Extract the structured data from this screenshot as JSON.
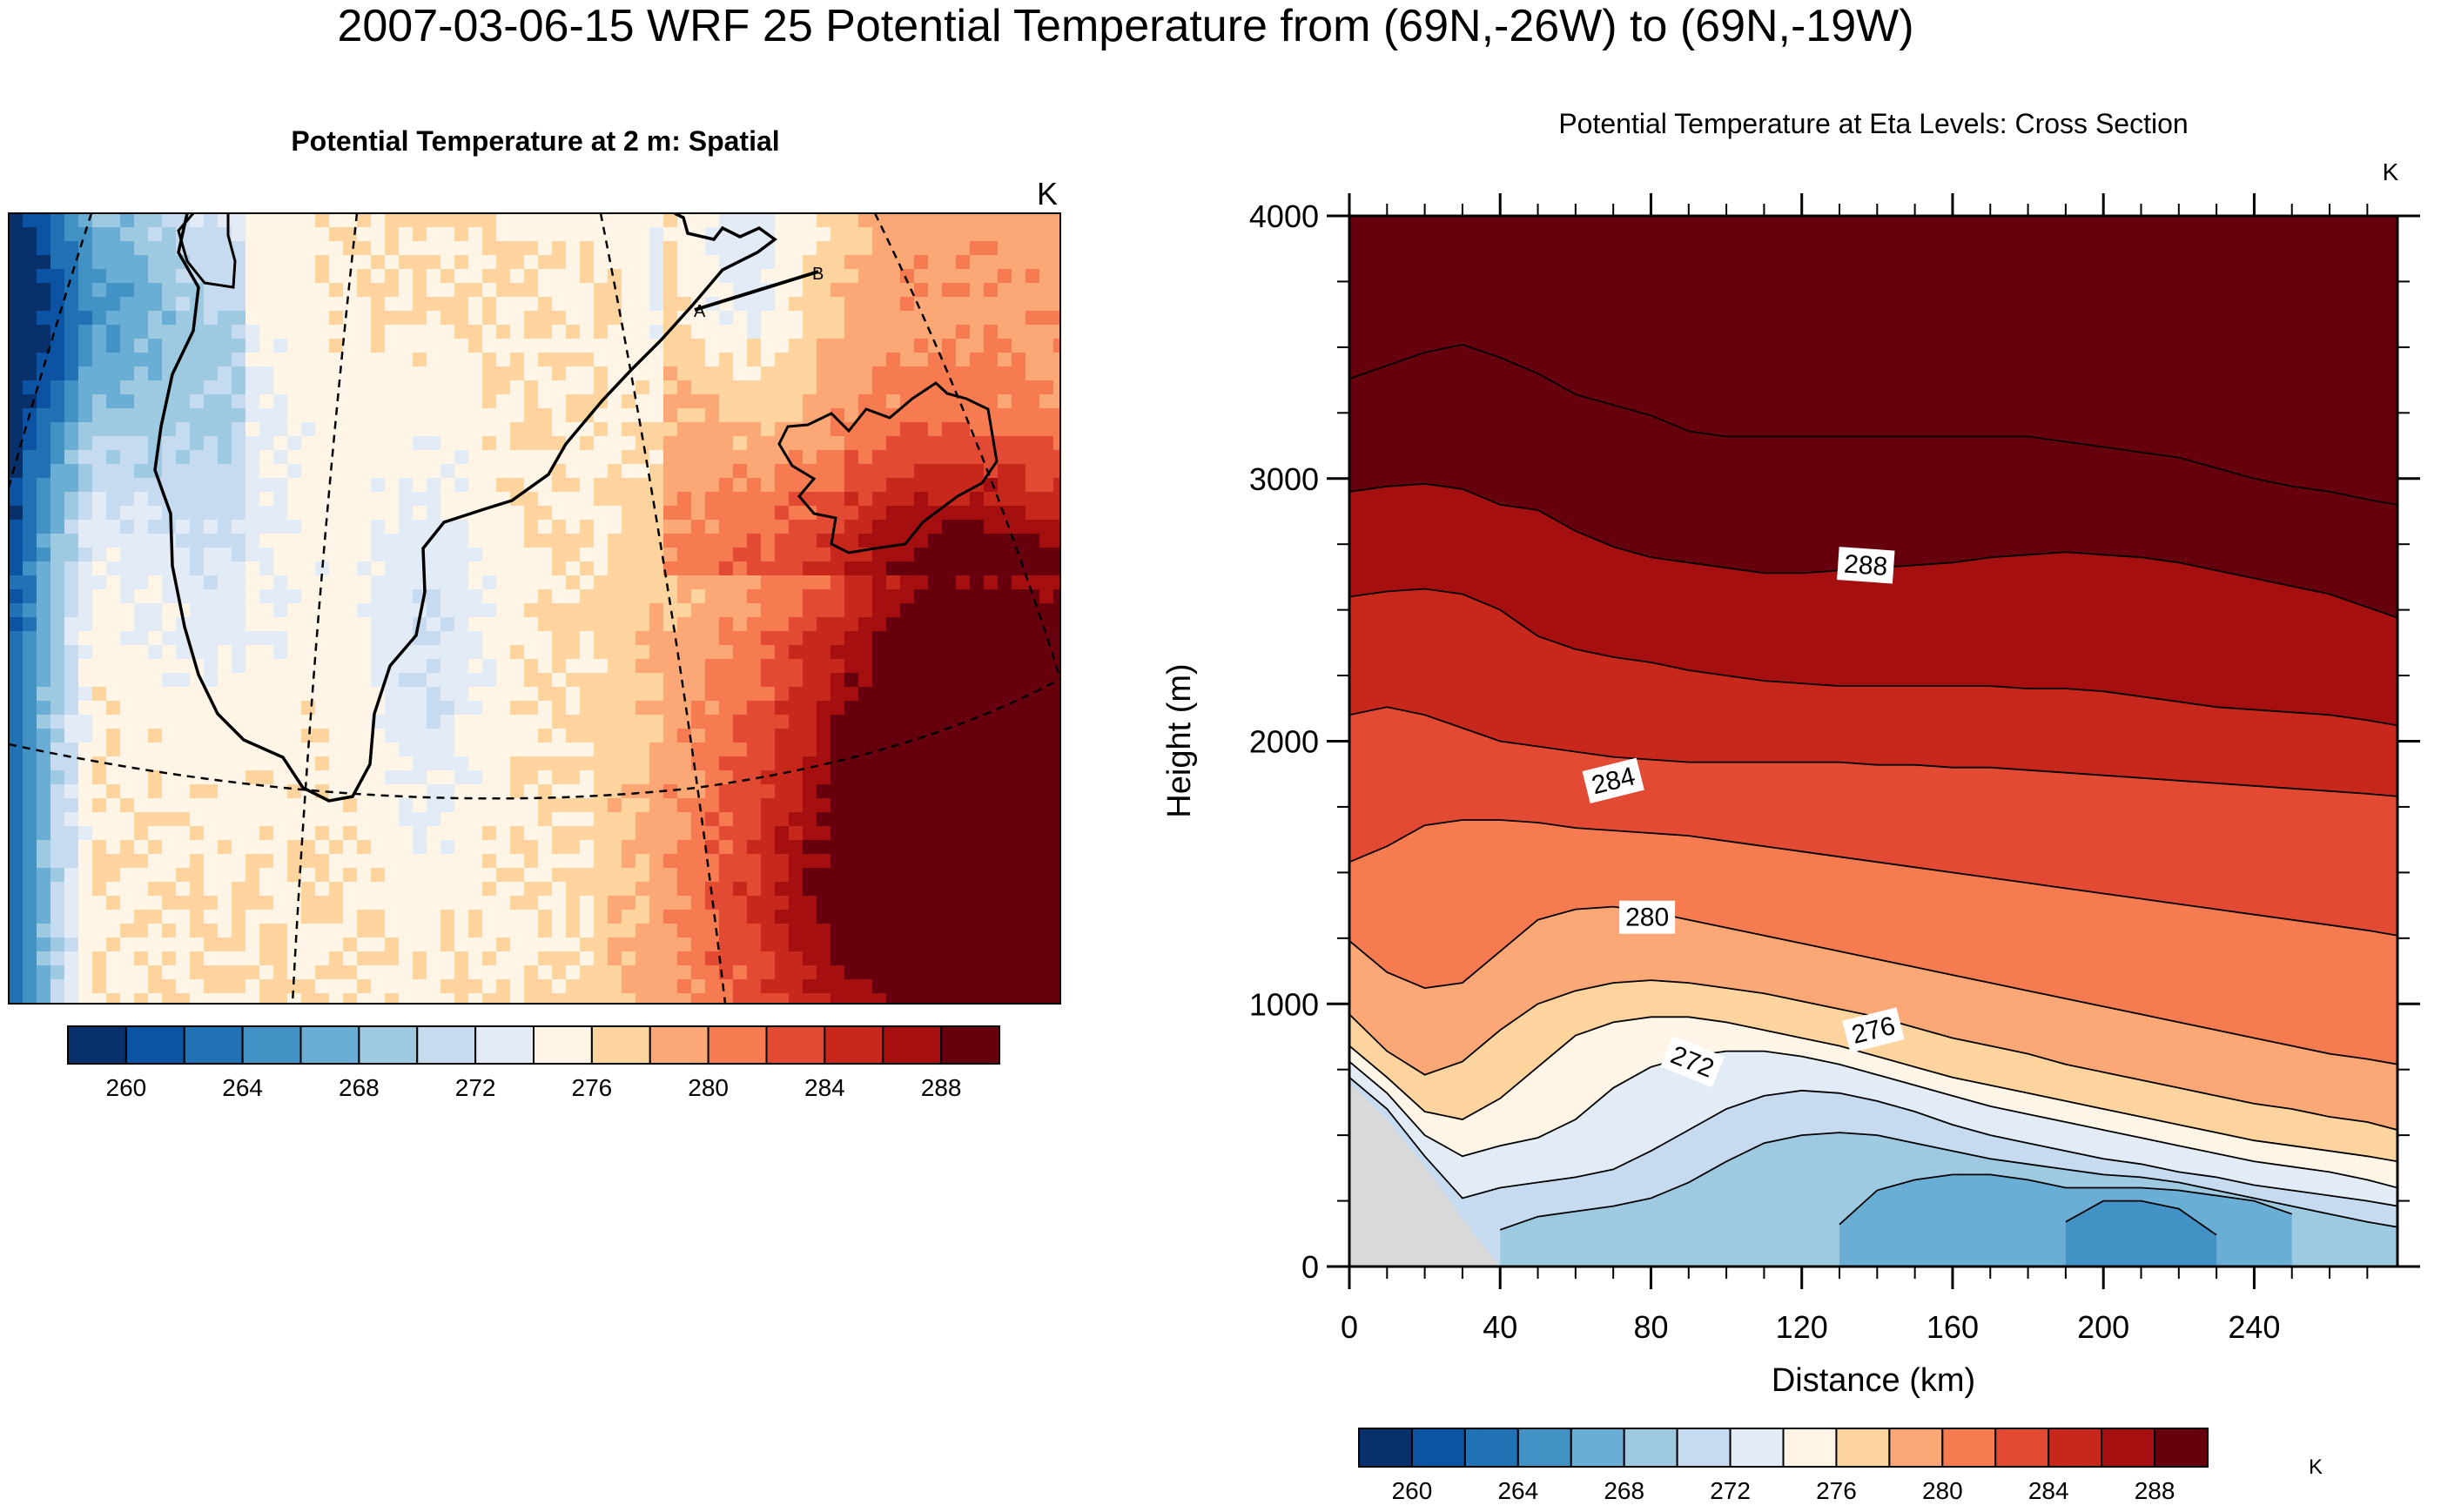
{
  "figure": {
    "title": "2007-03-06-15 WRF 25 Potential Temperature from (69N,-26W) to (69N,-19W)"
  },
  "chart_data": [
    {
      "type": "heatmap",
      "title": "Potential Temperature at 2 m: Spatial",
      "units": "K",
      "section_labels": [
        "A",
        "B"
      ],
      "colorbar": {
        "colors": [
          "#08306b",
          "#0d53a3",
          "#2171b5",
          "#4292c6",
          "#6aaed6",
          "#9ecae1",
          "#c6dbef",
          "#e3ebf7",
          "#fff5e6",
          "#fdd49e",
          "#fca876",
          "#f67b51",
          "#e34a33",
          "#c8281c",
          "#a50f0f",
          "#67000d"
        ],
        "tick_labels": [
          "260",
          "264",
          "268",
          "272",
          "276",
          "280",
          "284",
          "288"
        ]
      }
    },
    {
      "type": "area",
      "title": "Potential Temperature at Eta Levels: Cross Section",
      "units": "K",
      "xlabel": "Distance (km)",
      "ylabel": "Height (m)",
      "xlim": [
        0,
        278
      ],
      "ylim": [
        0,
        4000
      ],
      "x_ticks": [
        0,
        40,
        80,
        120,
        160,
        200,
        240
      ],
      "y_ticks": [
        0,
        1000,
        2000,
        3000,
        4000
      ],
      "x": [
        0,
        10,
        20,
        30,
        40,
        50,
        60,
        70,
        80,
        90,
        100,
        110,
        120,
        130,
        140,
        150,
        160,
        170,
        180,
        190,
        200,
        210,
        220,
        230,
        240,
        250,
        260,
        270,
        278
      ],
      "terrain_height": [
        700,
        560,
        380,
        180,
        0,
        0,
        0,
        0,
        0,
        0,
        0,
        0,
        0,
        0,
        0,
        0,
        0,
        0,
        0,
        0,
        0,
        0,
        0,
        0,
        0,
        0,
        0,
        0,
        0
      ],
      "contour_levels": [
        258,
        260,
        262,
        264,
        266,
        268,
        270,
        272,
        274,
        276,
        278,
        280,
        282,
        284,
        286,
        288,
        290,
        292
      ],
      "contour_heights": [
        [
          null,
          null,
          null,
          null,
          null,
          null,
          null,
          null,
          null,
          null,
          null,
          null,
          null,
          null,
          null,
          null,
          null,
          null,
          null,
          null,
          null,
          null,
          null,
          null,
          null,
          null,
          null,
          null,
          null
        ],
        [
          null,
          null,
          null,
          null,
          null,
          null,
          null,
          null,
          null,
          null,
          null,
          null,
          null,
          null,
          null,
          null,
          null,
          null,
          null,
          null,
          null,
          null,
          null,
          null,
          null,
          null,
          null,
          null,
          null
        ],
        [
          null,
          null,
          null,
          null,
          null,
          null,
          null,
          null,
          null,
          null,
          null,
          null,
          null,
          null,
          null,
          null,
          null,
          null,
          null,
          null,
          null,
          null,
          null,
          null,
          null,
          null,
          null,
          null,
          null
        ],
        [
          null,
          null,
          null,
          null,
          null,
          null,
          null,
          null,
          null,
          null,
          null,
          null,
          null,
          null,
          null,
          null,
          null,
          null,
          null,
          null,
          null,
          null,
          null,
          null,
          null,
          null,
          null,
          null,
          null
        ],
        [
          null,
          null,
          null,
          null,
          null,
          null,
          null,
          null,
          null,
          null,
          null,
          null,
          null,
          null,
          null,
          null,
          null,
          null,
          null,
          170,
          250,
          250,
          220,
          120,
          null,
          null,
          null,
          null,
          null
        ],
        [
          null,
          null,
          null,
          null,
          null,
          null,
          null,
          null,
          null,
          null,
          null,
          null,
          null,
          160,
          290,
          330,
          350,
          350,
          330,
          300,
          300,
          300,
          290,
          270,
          250,
          200,
          null,
          null,
          null
        ],
        [
          null,
          null,
          null,
          null,
          140,
          190,
          210,
          230,
          260,
          320,
          400,
          470,
          500,
          510,
          500,
          470,
          440,
          410,
          390,
          370,
          350,
          340,
          320,
          290,
          260,
          230,
          200,
          170,
          150
        ],
        [
          720,
          600,
          420,
          260,
          300,
          320,
          340,
          370,
          440,
          520,
          600,
          650,
          670,
          660,
          630,
          590,
          540,
          500,
          470,
          440,
          410,
          390,
          360,
          340,
          310,
          290,
          270,
          250,
          230
        ],
        [
          780,
          660,
          500,
          420,
          460,
          490,
          560,
          680,
          760,
          800,
          820,
          820,
          800,
          770,
          730,
          690,
          650,
          610,
          580,
          550,
          520,
          490,
          460,
          430,
          400,
          380,
          360,
          330,
          300
        ],
        [
          840,
          720,
          590,
          560,
          640,
          760,
          880,
          930,
          950,
          950,
          930,
          900,
          870,
          840,
          800,
          760,
          720,
          690,
          660,
          630,
          600,
          570,
          540,
          510,
          480,
          460,
          440,
          420,
          400
        ],
        [
          960,
          820,
          730,
          780,
          900,
          1000,
          1050,
          1080,
          1090,
          1080,
          1060,
          1040,
          1010,
          980,
          950,
          910,
          870,
          840,
          810,
          770,
          740,
          710,
          680,
          650,
          620,
          600,
          570,
          550,
          520
        ],
        [
          1240,
          1120,
          1060,
          1080,
          1200,
          1320,
          1360,
          1370,
          1350,
          1320,
          1290,
          1260,
          1230,
          1200,
          1170,
          1140,
          1110,
          1080,
          1050,
          1020,
          990,
          960,
          930,
          900,
          870,
          840,
          810,
          790,
          770
        ],
        [
          1540,
          1600,
          1680,
          1700,
          1700,
          1690,
          1670,
          1660,
          1650,
          1640,
          1620,
          1600,
          1580,
          1560,
          1540,
          1520,
          1500,
          1480,
          1460,
          1440,
          1420,
          1400,
          1380,
          1360,
          1340,
          1320,
          1300,
          1280,
          1260
        ],
        [
          2100,
          2130,
          2100,
          2050,
          2000,
          1980,
          1960,
          1940,
          1930,
          1920,
          1920,
          1920,
          1920,
          1920,
          1910,
          1910,
          1900,
          1900,
          1890,
          1880,
          1870,
          1860,
          1850,
          1840,
          1830,
          1820,
          1810,
          1800,
          1790
        ],
        [
          2550,
          2570,
          2580,
          2560,
          2500,
          2400,
          2350,
          2320,
          2300,
          2270,
          2250,
          2230,
          2220,
          2210,
          2210,
          2210,
          2210,
          2210,
          2200,
          2200,
          2190,
          2170,
          2150,
          2130,
          2120,
          2110,
          2100,
          2080,
          2060
        ],
        [
          2950,
          2970,
          2980,
          2960,
          2900,
          2880,
          2800,
          2740,
          2700,
          2680,
          2660,
          2640,
          2640,
          2650,
          2660,
          2670,
          2680,
          2700,
          2710,
          2720,
          2710,
          2700,
          2680,
          2650,
          2620,
          2590,
          2560,
          2510,
          2470
        ],
        [
          3380,
          3430,
          3480,
          3510,
          3460,
          3400,
          3320,
          3280,
          3240,
          3180,
          3160,
          3160,
          3160,
          3160,
          3160,
          3160,
          3160,
          3160,
          3160,
          3140,
          3120,
          3100,
          3080,
          3040,
          3000,
          2970,
          2950,
          2920,
          2900
        ],
        [
          null,
          null,
          null,
          null,
          null,
          null,
          null,
          null,
          null,
          null,
          null,
          null,
          null,
          null,
          null,
          null,
          null,
          null,
          null,
          null,
          null,
          null,
          null,
          null,
          null,
          null,
          null,
          null,
          null
        ]
      ],
      "contour_labels": [
        {
          "text": "272",
          "x": 91,
          "y": 780,
          "angle": -22
        },
        {
          "text": "276",
          "x": 139,
          "y": 900,
          "angle": 14
        },
        {
          "text": "280",
          "x": 79,
          "y": 1330,
          "angle": 0
        },
        {
          "text": "284",
          "x": 70,
          "y": 1850,
          "angle": 14
        },
        {
          "text": "288",
          "x": 137,
          "y": 2670,
          "angle": -4
        }
      ],
      "colorbar": {
        "colors": [
          "#08306b",
          "#0d53a3",
          "#2171b5",
          "#4292c6",
          "#6aaed6",
          "#9ecae1",
          "#c6dbef",
          "#e3ebf7",
          "#fff5e6",
          "#fdd49e",
          "#fca876",
          "#f67b51",
          "#e34a33",
          "#c8281c",
          "#a50f0f",
          "#67000d"
        ],
        "tick_labels": [
          "260",
          "264",
          "268",
          "272",
          "276",
          "280",
          "284",
          "288"
        ]
      },
      "terrain_color": "#d9d9d9"
    }
  ]
}
